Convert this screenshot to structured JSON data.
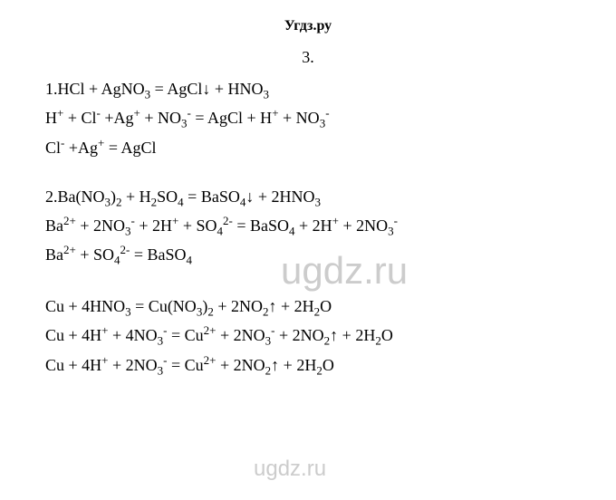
{
  "header": {
    "title": "Угдз.ру"
  },
  "section": {
    "number": "3."
  },
  "blocks": [
    {
      "lines": [
        "1.HCl + AgNO<sub>3</sub> = AgCl↓ + HNO<sub>3</sub>",
        "H<sup>+</sup> + Cl<sup>-</sup> +Ag<sup>+</sup> + NO<sub>3</sub><sup>-</sup> = AgCl + H<sup>+</sup> + NO<sub>3</sub><sup>-</sup>",
        "Cl<sup>-</sup> +Ag<sup>+</sup> = AgCl"
      ]
    },
    {
      "lines": [
        "2.Ba(NO<sub>3</sub>)<sub>2</sub> + H<sub>2</sub>SO<sub>4</sub> = BaSO<sub>4</sub>↓ + 2HNO<sub>3</sub>",
        "Ba<sup>2+</sup> + 2NO<sub>3</sub><sup>-</sup> + 2H<sup>+</sup> + SO<sub>4</sub><sup>2-</sup> = BaSO<sub>4</sub> + 2H<sup>+</sup> + 2NO<sub>3</sub><sup>-</sup>",
        "Ba<sup>2+</sup> + SO<sub>4</sub><sup>2-</sup> = BaSO<sub>4</sub>"
      ]
    },
    {
      "lines": [
        "Cu + 4HNO<sub>3</sub> = Cu(NO<sub>3</sub>)<sub>2</sub> + 2NO<sub>2</sub>↑ + 2H<sub>2</sub>O",
        "Cu + 4H<sup>+</sup> + 4NO<sub>3</sub><sup>-</sup> = Cu<sup>2+</sup> + 2NO<sub>3</sub><sup>-</sup> + 2NO<sub>2</sub>↑ + 2H<sub>2</sub>O",
        "Cu + 4H<sup>+</sup> + 2NO<sub>3</sub><sup>-</sup> = Cu<sup>2+</sup>  + 2NO<sub>2</sub>↑ + 2H<sub>2</sub>O"
      ]
    }
  ],
  "watermarks": {
    "center": "ugdz.ru",
    "bottom": "ugdz.ru"
  },
  "styling": {
    "background_color": "#ffffff",
    "text_color": "#000000",
    "watermark_color": "#cccccc",
    "font_family": "Times New Roman",
    "equation_fontsize": 18,
    "header_fontsize": 16,
    "watermark_fontsize_center": 42,
    "watermark_fontsize_bottom": 24
  }
}
